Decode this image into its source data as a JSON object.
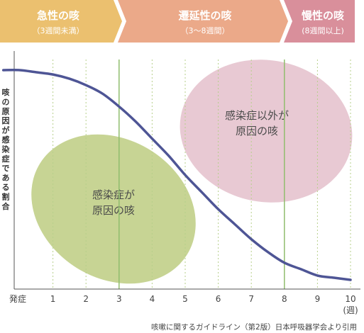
{
  "phases": [
    {
      "title": "急性の咳",
      "subtitle": "（3週間未満）",
      "color": "#ebc06f"
    },
    {
      "title": "遷延性の咳",
      "subtitle": "（3〜8週間）",
      "color": "#eba989"
    },
    {
      "title": "慢性の咳",
      "subtitle": "(8週間以上)",
      "color": "#d98f9b"
    }
  ],
  "regions": [
    {
      "lines": [
        "感染症が",
        "原因の咳"
      ],
      "color": "#c7d494"
    },
    {
      "lines": [
        "感染症以外が",
        "原因の咳"
      ],
      "color": "#e8c9d3"
    }
  ],
  "colors": {
    "curve": "#4e5595",
    "grid": "#b6cf8a",
    "phase_boundary": "#90bd6d",
    "axis": "#555555"
  },
  "source_note": "咳嗽に関するガイドライン（第2版）日本呼吸器学会より引用",
  "chart_data": {
    "type": "line",
    "xlabel": "",
    "ylabel": "咳の原因が感染症である割合",
    "x_ticks": [
      "発症",
      "1",
      "2",
      "3",
      "4",
      "5",
      "6",
      "7",
      "8",
      "9",
      "10"
    ],
    "x_unit": "(週)",
    "xlim": [
      0,
      10.5
    ],
    "ylim": [
      0,
      1
    ],
    "grid": "vertical dashed at each week; solid at weeks 3 and 8",
    "series": [
      {
        "x": [
          -0.5,
          0,
          0.5,
          1,
          1.5,
          2,
          2.5,
          3,
          3.5,
          4,
          4.5,
          5,
          5.5,
          6,
          6.5,
          7,
          7.5,
          8,
          8.5,
          9,
          9.5,
          10
        ],
        "y": [
          0.99,
          0.99,
          0.98,
          0.97,
          0.95,
          0.92,
          0.88,
          0.82,
          0.75,
          0.67,
          0.59,
          0.5,
          0.42,
          0.34,
          0.27,
          0.2,
          0.14,
          0.09,
          0.06,
          0.03,
          0.02,
          0.01
        ]
      }
    ]
  }
}
